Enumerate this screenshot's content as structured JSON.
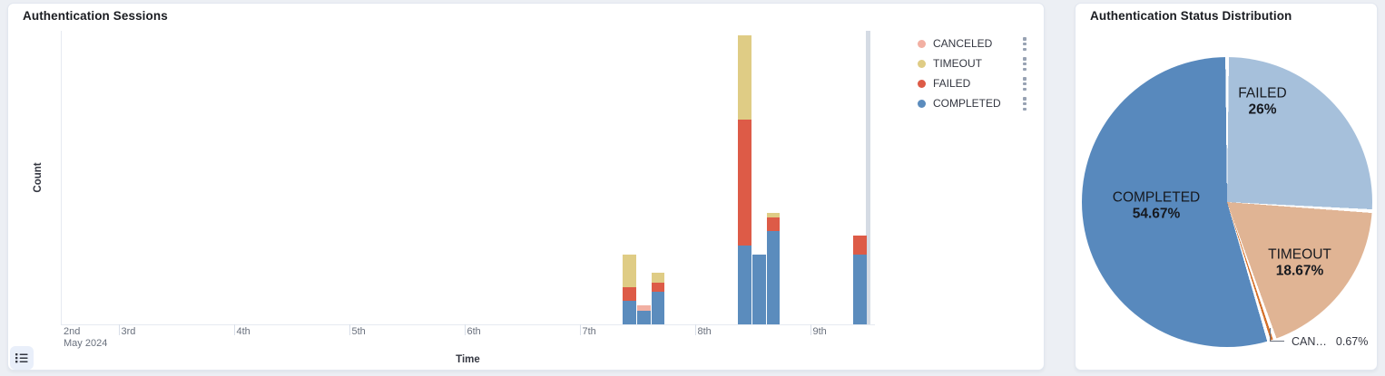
{
  "icons": {
    "legend_toggle": "list-icon",
    "legend_item_menu": "vertical-kebab-dots-icon"
  },
  "chart_data": [
    {
      "type": "bar",
      "title": "Authentication Sessions",
      "xlabel": "Time",
      "ylabel": "Count",
      "stacked": true,
      "grid": false,
      "ylim": [
        0,
        63
      ],
      "y_tick_labels_visible": false,
      "legend_position": "right",
      "legend": [
        "CANCELED",
        "TIMEOUT",
        "FAILED",
        "COMPLETED"
      ],
      "series_colors": {
        "COMPLETED": "#5b8cbd",
        "FAILED": "#dd5b47",
        "TIMEOUT": "#dfcc85",
        "CANCELED": "#f2b0a3"
      },
      "x_axis": {
        "month_label": "May 2024",
        "ticks": [
          {
            "label": "2nd",
            "day": 2
          },
          {
            "label": "3rd",
            "day": 3
          },
          {
            "label": "4th",
            "day": 4
          },
          {
            "label": "5th",
            "day": 5
          },
          {
            "label": "6th",
            "day": 6
          },
          {
            "label": "7th",
            "day": 7
          },
          {
            "label": "8th",
            "day": 8
          },
          {
            "label": "9th",
            "day": 9
          }
        ]
      },
      "bucket_interval": "3h",
      "buckets": [
        {
          "time": "May 7 09:00",
          "day": 7,
          "hour": 9,
          "COMPLETED": 5,
          "FAILED": 3,
          "TIMEOUT": 7,
          "CANCELED": 0
        },
        {
          "time": "May 7 12:00",
          "day": 7,
          "hour": 12,
          "COMPLETED": 3,
          "FAILED": 0,
          "TIMEOUT": 0,
          "CANCELED": 1
        },
        {
          "time": "May 7 15:00",
          "day": 7,
          "hour": 15,
          "COMPLETED": 7,
          "FAILED": 2,
          "TIMEOUT": 2,
          "CANCELED": 0
        },
        {
          "time": "May 8 09:00",
          "day": 8,
          "hour": 9,
          "COMPLETED": 17,
          "FAILED": 27,
          "TIMEOUT": 18,
          "CANCELED": 0
        },
        {
          "time": "May 8 12:00",
          "day": 8,
          "hour": 12,
          "COMPLETED": 15,
          "FAILED": 0,
          "TIMEOUT": 0,
          "CANCELED": 0
        },
        {
          "time": "May 8 15:00",
          "day": 8,
          "hour": 15,
          "COMPLETED": 20,
          "FAILED": 3,
          "TIMEOUT": 1,
          "CANCELED": 0
        },
        {
          "time": "May 9 09:00",
          "day": 9,
          "hour": 9,
          "COMPLETED": 15,
          "FAILED": 4,
          "TIMEOUT": 0,
          "CANCELED": 0
        }
      ],
      "now_marker": {
        "day": 9,
        "hour": 12,
        "color": "#d5dbe4"
      }
    },
    {
      "type": "pie",
      "title": "Authentication Status Distribution",
      "total": 150,
      "start_angle_deg": 0,
      "clockwise": true,
      "slices": [
        {
          "label": "FAILED",
          "value": 39,
          "pct": 26,
          "pct_label": "26%",
          "color": "#a6c0db"
        },
        {
          "label": "TIMEOUT",
          "value": 28,
          "pct": 18.67,
          "pct_label": "18.67%",
          "color": "#e0b494"
        },
        {
          "label": "CANCELED",
          "value": 1,
          "pct": 0.67,
          "pct_label": "0.67%",
          "display_label": "CAN…",
          "color": "#d4702a"
        },
        {
          "label": "COMPLETED",
          "value": 82,
          "pct": 54.67,
          "pct_label": "54.67%",
          "color": "#5889bd"
        }
      ]
    }
  ]
}
